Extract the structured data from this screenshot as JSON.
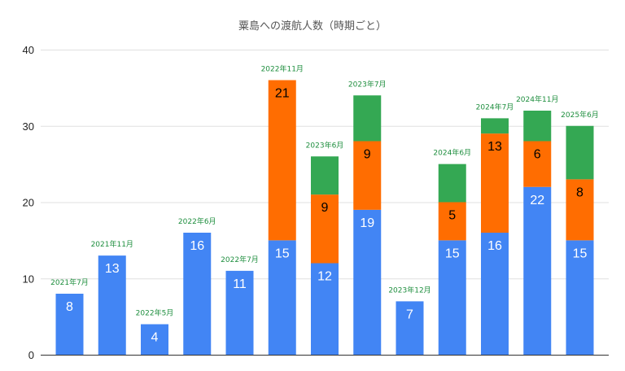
{
  "chart_data": {
    "type": "bar",
    "stacked": true,
    "title": "粟島への渡航人数（時期ごと）",
    "xlabel": "",
    "ylabel": "",
    "ylim": [
      0,
      40
    ],
    "yticks": [
      "0",
      "10",
      "20",
      "30",
      "40"
    ],
    "grid": true,
    "legend": "none",
    "categories": [
      "2021年7月",
      "2021年11月",
      "2022年5月",
      "2022年6月",
      "2022年7月",
      "2022年11月",
      "2023年6月",
      "2023年7月",
      "2023年12月",
      "2024年6月",
      "2024年7月",
      "2024年11月",
      "2025年6月"
    ],
    "series": [
      {
        "color": "#4285F4",
        "label_color": "#ffffff",
        "values": [
          8,
          13,
          4,
          16,
          11,
          15,
          12,
          19,
          7,
          15,
          16,
          22,
          15
        ],
        "labels": [
          "8",
          "13",
          "4",
          "16",
          "11",
          "15",
          "12",
          "19",
          "7",
          "15",
          "16",
          "22",
          "15"
        ]
      },
      {
        "color": "#FF6D01",
        "label_color": "#000000",
        "values": [
          0,
          0,
          0,
          0,
          0,
          21,
          9,
          9,
          0,
          5,
          13,
          6,
          8
        ],
        "labels": [
          "",
          "",
          "",
          "",
          "",
          "21",
          "9",
          "9",
          "",
          "5",
          "13",
          "6",
          "8"
        ]
      },
      {
        "color": "#34A853",
        "label_color": "#000000",
        "values": [
          0,
          0,
          0,
          0,
          0,
          0,
          5,
          6,
          0,
          5,
          2,
          4,
          7
        ],
        "labels": [
          "",
          "",
          "",
          "",
          "",
          "",
          "",
          "",
          "",
          "",
          "",
          "",
          ""
        ]
      }
    ],
    "category_label_color": "#1E8E3E"
  }
}
